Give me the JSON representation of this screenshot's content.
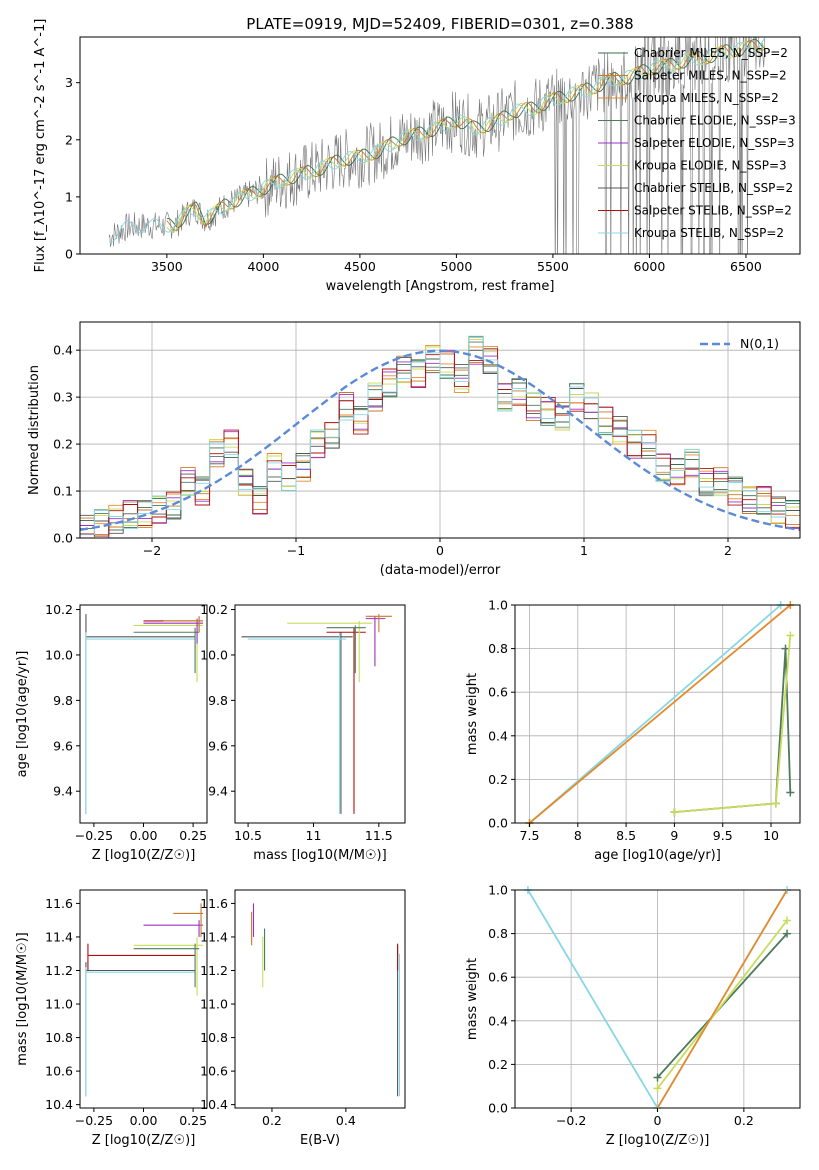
{
  "title": "PLATE=0919, MJD=52409, FIBERID=0301, z=0.388",
  "legend": [
    "Chabrier MILES, N_SSP=2",
    "Salpeter MILES, N_SSP=2",
    "Kroupa MILES, N_SSP=2",
    "Chabrier ELODIE, N_SSP=3",
    "Salpeter ELODIE, N_SSP=3",
    "Kroupa ELODIE, N_SSP=3",
    "Chabrier STELIB, N_SSP=2",
    "Salpeter STELIB, N_SSP=2",
    "Kroupa STELIB, N_SSP=2"
  ],
  "colors": [
    "#3b6e47",
    "#c87a2a",
    "#e58b2c",
    "#4e7a5c",
    "#9b30c8",
    "#c8dc5a",
    "#555555",
    "#b01010",
    "#87d7e6"
  ],
  "chart_data": [
    {
      "type": "line",
      "name": "spectrum",
      "xlabel": "wavelength [Angstrom, rest frame]",
      "ylabel": "Flux [f_λ10^-17 erg cm^-2 s^-1 A^-1]",
      "xlim": [
        3050,
        6780
      ],
      "ylim": [
        0,
        3.8
      ],
      "xticks": [
        3500,
        4000,
        4500,
        5000,
        5500,
        6000,
        6500
      ],
      "yticks": [
        0,
        1,
        2,
        3
      ],
      "grid": false,
      "model_curve": {
        "x": [
          3200,
          3300,
          3400,
          3500,
          3550,
          3600,
          3650,
          3700,
          3800,
          3900,
          4000,
          4100,
          4200,
          4300,
          4400,
          4500,
          4600,
          4700,
          4800,
          4900,
          5000,
          5100,
          5200,
          5300,
          5400,
          5500,
          5600,
          5700,
          5800,
          5900,
          6000,
          6100,
          6200,
          6300,
          6400,
          6500,
          6600
        ],
        "y": [
          0.3,
          0.48,
          0.5,
          0.5,
          0.52,
          0.7,
          0.8,
          0.6,
          0.85,
          1.0,
          1.15,
          1.3,
          1.4,
          1.5,
          1.65,
          1.7,
          1.8,
          2.0,
          2.1,
          2.2,
          2.35,
          2.2,
          2.3,
          2.5,
          2.55,
          2.7,
          2.8,
          2.9,
          3.05,
          3.1,
          3.25,
          3.3,
          3.4,
          3.45,
          3.55,
          3.6,
          3.7
        ]
      }
    },
    {
      "type": "histogram",
      "name": "residuals",
      "xlabel": "(data-model)/error",
      "ylabel": "Normed distribution",
      "xlim": [
        -2.5,
        2.5
      ],
      "ylim": [
        0,
        0.46
      ],
      "xticks": [
        -2,
        -1,
        0,
        1,
        2
      ],
      "yticks": [
        0.0,
        0.1,
        0.2,
        0.3,
        0.4
      ],
      "grid": true,
      "reference_label": "N(0,1)",
      "bins": [
        -2.5,
        -2.4,
        -2.3,
        -2.2,
        -2.1,
        -2.0,
        -1.9,
        -1.8,
        -1.7,
        -1.6,
        -1.5,
        -1.4,
        -1.3,
        -1.2,
        -1.1,
        -1.0,
        -0.9,
        -0.8,
        -0.7,
        -0.6,
        -0.5,
        -0.4,
        -0.3,
        -0.2,
        -0.1,
        0.0,
        0.1,
        0.2,
        0.3,
        0.4,
        0.5,
        0.6,
        0.7,
        0.8,
        0.9,
        1.0,
        1.1,
        1.2,
        1.3,
        1.4,
        1.5,
        1.6,
        1.7,
        1.8,
        1.9,
        2.0,
        2.1,
        2.2,
        2.3,
        2.4
      ],
      "values": [
        0.02,
        0.03,
        0.04,
        0.05,
        0.05,
        0.06,
        0.07,
        0.12,
        0.1,
        0.18,
        0.2,
        0.12,
        0.08,
        0.15,
        0.13,
        0.15,
        0.2,
        0.22,
        0.28,
        0.25,
        0.3,
        0.33,
        0.36,
        0.35,
        0.38,
        0.37,
        0.34,
        0.4,
        0.38,
        0.3,
        0.31,
        0.28,
        0.27,
        0.26,
        0.3,
        0.28,
        0.25,
        0.23,
        0.2,
        0.2,
        0.15,
        0.14,
        0.16,
        0.12,
        0.12,
        0.1,
        0.08,
        0.08,
        0.06,
        0.05
      ]
    },
    {
      "type": "scatter",
      "name": "age-vs-Z",
      "xlabel": "Z [log10(Z/Z☉)]",
      "ylabel": "age [log10(age/yr)]",
      "xlim": [
        -0.32,
        0.32
      ],
      "ylim": [
        9.26,
        10.22
      ],
      "xticks": [
        -0.25,
        0.0,
        0.25
      ],
      "yticks": [
        9.4,
        9.6,
        9.8,
        10.0,
        10.2
      ]
    },
    {
      "type": "scatter",
      "name": "age-vs-mass",
      "xlabel": "mass [log10(M/M☉)]",
      "ylabel": "",
      "xlim": [
        10.4,
        11.7
      ],
      "ylim": [
        9.26,
        10.22
      ],
      "xticks": [
        10.5,
        11.0,
        11.5
      ],
      "yticks": [
        9.4,
        9.6,
        9.8,
        10.0,
        10.2
      ]
    },
    {
      "type": "line",
      "name": "weight-vs-age",
      "xlabel": "age [log10(age/yr)]",
      "ylabel": "mass weight",
      "xlim": [
        7.35,
        10.3
      ],
      "ylim": [
        0,
        1
      ],
      "xticks": [
        7.5,
        8.0,
        8.5,
        9.0,
        9.5,
        10.0
      ],
      "yticks": [
        0.0,
        0.2,
        0.4,
        0.6,
        0.8,
        1.0
      ],
      "grid": true,
      "series": [
        {
          "x": [
            7.5,
            10.1
          ],
          "y": [
            0.0,
            1.0
          ]
        },
        {
          "x": [
            7.5,
            10.2
          ],
          "y": [
            0.0,
            1.0
          ]
        },
        {
          "x": [
            9.0,
            10.05,
            10.15,
            10.2
          ],
          "y": [
            0.05,
            0.09,
            0.8,
            0.14
          ]
        },
        {
          "x": [
            9.0,
            10.05,
            10.2
          ],
          "y": [
            0.05,
            0.09,
            0.86
          ]
        }
      ]
    },
    {
      "type": "scatter",
      "name": "mass-vs-Z",
      "xlabel": "Z [log10(Z/Z☉)]",
      "ylabel": "mass [log10(M/M☉)]",
      "xlim": [
        -0.32,
        0.32
      ],
      "ylim": [
        10.38,
        11.68
      ],
      "xticks": [
        -0.25,
        0.0,
        0.25
      ],
      "yticks": [
        10.4,
        10.6,
        10.8,
        11.0,
        11.2,
        11.4,
        11.6
      ]
    },
    {
      "type": "scatter",
      "name": "mass-vs-EBV",
      "xlabel": "E(B-V)",
      "ylabel": "",
      "xlim": [
        0.1,
        0.56
      ],
      "ylim": [
        10.38,
        11.68
      ],
      "xticks": [
        0.2,
        0.4
      ],
      "yticks": [
        10.4,
        10.6,
        10.8,
        11.0,
        11.2,
        11.4,
        11.6
      ]
    },
    {
      "type": "line",
      "name": "weight-vs-Z",
      "xlabel": "Z [log10(Z/Z☉)]",
      "ylabel": "mass weight",
      "xlim": [
        -0.33,
        0.33
      ],
      "ylim": [
        0,
        1
      ],
      "xticks": [
        -0.2,
        0.0,
        0.2
      ],
      "yticks": [
        0.0,
        0.2,
        0.4,
        0.6,
        0.8,
        1.0
      ],
      "grid": true,
      "series": [
        {
          "x": [
            -0.3,
            0.0,
            0.3
          ],
          "y": [
            1.0,
            0.0,
            1.0
          ]
        },
        {
          "x": [
            0.0,
            0.3
          ],
          "y": [
            0.14,
            0.8
          ]
        },
        {
          "x": [
            0.0,
            0.3
          ],
          "y": [
            0.09,
            0.86
          ]
        }
      ]
    }
  ]
}
